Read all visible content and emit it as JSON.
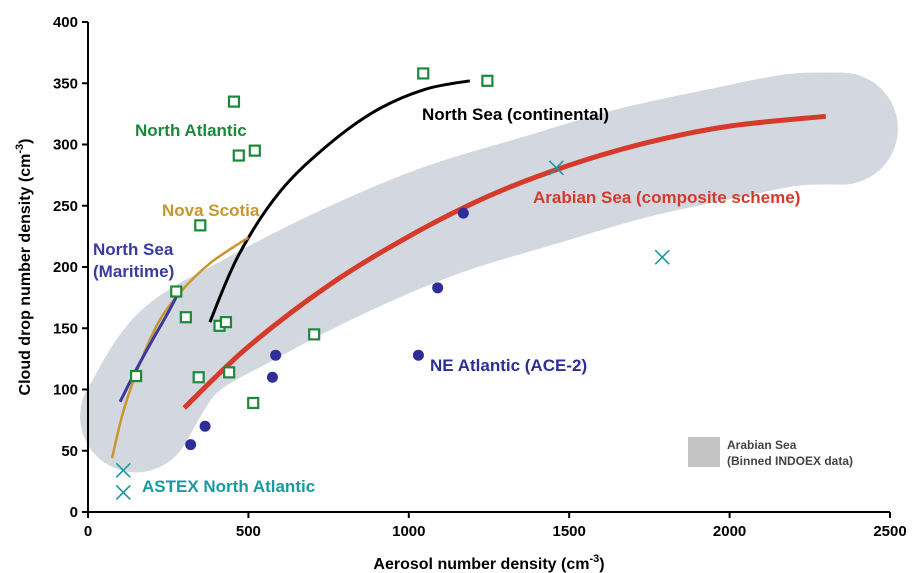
{
  "chart_data": {
    "type": "scatter",
    "xlabel": "Aerosol number density (cm",
    "xlabel_sup": "-3",
    "xlabel_end": ")",
    "ylabel": "Cloud drop number density (cm",
    "ylabel_sup": "-3",
    "ylabel_end": ")",
    "xlim": [
      0,
      2500
    ],
    "ylim": [
      0,
      400
    ],
    "x_ticks": [
      "0",
      "500",
      "1000",
      "1500",
      "2000",
      "2500"
    ],
    "y_ticks": [
      "0",
      "50",
      "100",
      "150",
      "200",
      "250",
      "300",
      "350",
      "400"
    ],
    "colors": {
      "north_atlantic": "#1a8a3a",
      "north_sea_continental": "#000000",
      "arabian_sea_composite": "#d63a2a",
      "nova_scotia": "#c8962e",
      "north_sea_maritime": "#3a3aa0",
      "ne_atlantic": "#2e2e9a",
      "astex": "#1a9aa0",
      "band": "#d3d8e0",
      "legend_swatch": "#c4c4c4"
    },
    "band_centerline": [
      [
        150,
        78
      ],
      [
        280,
        130
      ],
      [
        500,
        165
      ],
      [
        800,
        205
      ],
      [
        1100,
        238
      ],
      [
        1400,
        262
      ],
      [
        1700,
        285
      ],
      [
        2000,
        302
      ],
      [
        2200,
        312
      ],
      [
        2350,
        313
      ]
    ],
    "series": [
      {
        "name": "North Atlantic",
        "kind": "square",
        "points": [
          [
            150,
            111
          ],
          [
            275,
            180
          ],
          [
            305,
            159
          ],
          [
            345,
            110
          ],
          [
            350,
            234
          ],
          [
            410,
            152
          ],
          [
            430,
            155
          ],
          [
            440,
            114
          ],
          [
            455,
            335
          ],
          [
            470,
            291
          ],
          [
            515,
            89
          ],
          [
            520,
            295
          ],
          [
            705,
            145
          ],
          [
            1045,
            358
          ],
          [
            1245,
            352
          ]
        ]
      },
      {
        "name": "NE Atlantic (ACE-2)",
        "kind": "circle",
        "points": [
          [
            320,
            55
          ],
          [
            365,
            70
          ],
          [
            575,
            110
          ],
          [
            585,
            128
          ],
          [
            1030,
            128
          ],
          [
            1090,
            183
          ],
          [
            1170,
            244
          ]
        ]
      },
      {
        "name": "ASTEX North Atlantic",
        "kind": "x",
        "points": [
          [
            110,
            34
          ],
          [
            110,
            16
          ],
          [
            1460,
            281
          ],
          [
            1790,
            208
          ]
        ]
      },
      {
        "name": "North Sea (continental)",
        "kind": "line",
        "points": [
          [
            380,
            155
          ],
          [
            470,
            210
          ],
          [
            600,
            262
          ],
          [
            750,
            300
          ],
          [
            900,
            328
          ],
          [
            1050,
            345
          ],
          [
            1190,
            352
          ]
        ]
      },
      {
        "name": "Arabian Sea (composite scheme)",
        "kind": "line",
        "points": [
          [
            300,
            85
          ],
          [
            500,
            135
          ],
          [
            750,
            185
          ],
          [
            1000,
            225
          ],
          [
            1250,
            258
          ],
          [
            1500,
            283
          ],
          [
            1750,
            302
          ],
          [
            2000,
            315
          ],
          [
            2300,
            323
          ]
        ]
      },
      {
        "name": "Nova Scotia",
        "kind": "line",
        "points": [
          [
            75,
            44
          ],
          [
            110,
            82
          ],
          [
            160,
            120
          ],
          [
            220,
            155
          ],
          [
            290,
            180
          ],
          [
            380,
            203
          ],
          [
            500,
            224
          ]
        ]
      },
      {
        "name": "North Sea (Maritime)",
        "kind": "line",
        "points": [
          [
            100,
            90
          ],
          [
            150,
            116
          ],
          [
            200,
            140
          ],
          [
            250,
            163
          ],
          [
            290,
            183
          ]
        ]
      }
    ],
    "annotations": {
      "north_atlantic": "North Atlantic",
      "north_sea_continental": "North Sea (continental)",
      "arabian_sea_composite": "Arabian Sea (composite scheme)",
      "nova_scotia": "Nova Scotia",
      "north_sea_maritime_1": "North Sea",
      "north_sea_maritime_2": "(Maritime)",
      "ne_atlantic": "NE Atlantic (ACE-2)",
      "astex": "ASTEX North Atlantic"
    },
    "legend": {
      "line1": "Arabian Sea",
      "line2": "(Binned INDOEX data)"
    }
  }
}
